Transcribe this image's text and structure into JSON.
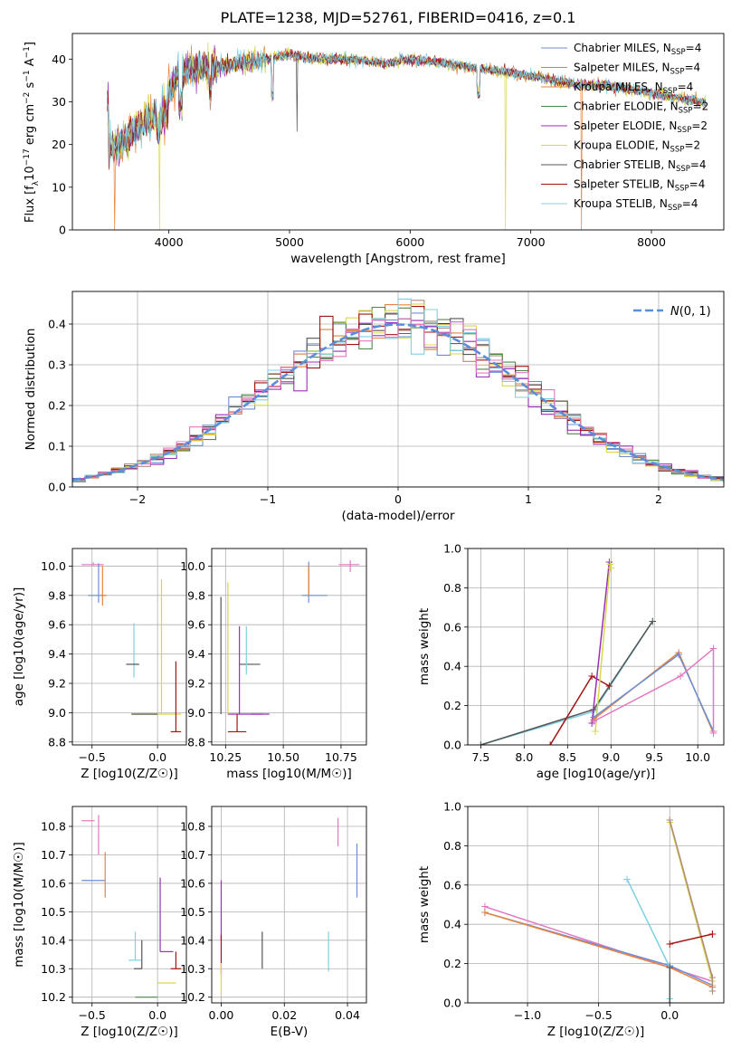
{
  "figure": {
    "title": "PLATE=1238, MJD=52761, FIBERID=0416, z=0.1"
  },
  "colors": {
    "chabrier_miles": "#6b8fd6",
    "salpeter_miles": "#b08a7e",
    "kroupa_miles": "#e8823a",
    "chabrier_elodie": "#4d8a4d",
    "salpeter_elodie": "#9b2fb5",
    "kroupa_elodie": "#d8d84a",
    "chabrier_stelib": "#555555",
    "salpeter_stelib": "#a31515",
    "kroupa_stelib": "#7fd0e0",
    "pink": "#e377c2",
    "normal_curve": "#5b8ed8",
    "grid": "#b0b0b0"
  },
  "chart_data": [
    {
      "id": "spectrum",
      "type": "line",
      "xlabel": "wavelength [Angstrom, rest frame]",
      "ylabel": "Flux [f_λ 10^-17 erg cm^-2 s^-1 A^-1]",
      "xlim": [
        3200,
        8600
      ],
      "ylim": [
        0,
        46
      ],
      "xticks": [
        4000,
        5000,
        6000,
        7000,
        8000
      ],
      "yticks": [
        0,
        10,
        20,
        30,
        40
      ],
      "grid": false,
      "legend_position": "top-right",
      "legend": [
        "Chabrier MILES, N_SSP=4",
        "Salpeter MILES, N_SSP=4",
        "Kroupa MILES, N_SSP=4",
        "Chabrier ELODIE, N_SSP=2",
        "Salpeter ELODIE, N_SSP=2",
        "Kroupa ELODIE, N_SSP=2",
        "Chabrier STELIB, N_SSP=4",
        "Salpeter STELIB, N_SSP=4",
        "Kroupa STELIB, N_SSP=4"
      ],
      "continuum": {
        "x": [
          3500,
          3600,
          3700,
          3800,
          3900,
          4000,
          4100,
          4200,
          4400,
          4600,
          4800,
          5000,
          5200,
          5500,
          5800,
          6000,
          6300,
          6500,
          6800,
          7000,
          7200,
          7400,
          7600,
          7800,
          8000,
          8200,
          8400
        ],
        "y": [
          19,
          20,
          23,
          25,
          27,
          33,
          37,
          38,
          38,
          39,
          40,
          41,
          40,
          40,
          39,
          40,
          39,
          38,
          37,
          36,
          35,
          34,
          34,
          33,
          32,
          31,
          30
        ]
      },
      "dips": [
        {
          "x": 3550,
          "y": 0
        },
        {
          "x": 3920,
          "y": 0
        },
        {
          "x": 5060,
          "y": 23
        },
        {
          "x": 6790,
          "y": 0
        },
        {
          "x": 7420,
          "y": 0
        }
      ]
    },
    {
      "id": "residual-histogram",
      "type": "line",
      "xlabel": "(data-model)/error",
      "ylabel": "Normed distribution",
      "xlim": [
        -2.5,
        2.5
      ],
      "ylim": [
        0,
        0.48
      ],
      "xticks": [
        -2,
        -1,
        0,
        1,
        2
      ],
      "yticks": [
        0.0,
        0.1,
        0.2,
        0.3,
        0.4
      ],
      "grid": true,
      "legend_position": "top-right",
      "legend": [
        "N(0, 1)"
      ],
      "bin_width": 0.1
    },
    {
      "id": "age-vs-Z",
      "type": "scatter",
      "xlabel": "Z [log10(Z/Z☉)]",
      "ylabel": "age  [log10(age/yr)]",
      "xlim": [
        -0.65,
        0.22
      ],
      "ylim": [
        8.78,
        10.12
      ],
      "xticks": [
        -0.5,
        0.0
      ],
      "yticks": [
        8.8,
        9.0,
        9.2,
        9.4,
        9.6,
        9.8,
        10.0
      ],
      "grid": true
    },
    {
      "id": "age-vs-mass",
      "type": "scatter",
      "xlabel": "mass [log10(M/M☉)]",
      "ylabel": "",
      "xlim": [
        10.19,
        10.86
      ],
      "ylim": [
        8.78,
        10.12
      ],
      "xticks": [
        10.25,
        10.5,
        10.75
      ],
      "yticks": [
        8.8,
        9.0,
        9.2,
        9.4,
        9.6,
        9.8,
        10.0
      ],
      "grid": true
    },
    {
      "id": "weight-vs-age",
      "type": "line",
      "xlabel": "age  [log10(age/yr)]",
      "ylabel": "mass weight",
      "xlim": [
        7.35,
        10.3
      ],
      "ylim": [
        0,
        1.0
      ],
      "xticks": [
        7.5,
        8.0,
        8.5,
        9.0,
        9.5,
        10.0
      ],
      "yticks": [
        0.0,
        0.2,
        0.4,
        0.6,
        0.8,
        1.0
      ],
      "grid": true
    },
    {
      "id": "mass-vs-Z",
      "type": "scatter",
      "xlabel": "Z [log10(Z/Z☉)]",
      "ylabel": "mass [log10(M/M☉)]",
      "xlim": [
        -0.65,
        0.22
      ],
      "ylim": [
        10.18,
        10.87
      ],
      "xticks": [
        -0.5,
        0.0
      ],
      "yticks": [
        10.2,
        10.3,
        10.4,
        10.5,
        10.6,
        10.7,
        10.8
      ],
      "grid": true
    },
    {
      "id": "mass-vs-EBV",
      "type": "scatter",
      "xlabel": "E(B-V)",
      "ylabel": "",
      "xlim": [
        -0.003,
        0.046
      ],
      "ylim": [
        10.18,
        10.87
      ],
      "xticks": [
        0.0,
        0.02,
        0.04
      ],
      "xtick_labels": [
        "0.00",
        "0.02",
        "0.04"
      ],
      "yticks": [
        10.2,
        10.3,
        10.4,
        10.5,
        10.6,
        10.7,
        10.8
      ],
      "grid": true
    },
    {
      "id": "weight-vs-Z",
      "type": "line",
      "xlabel": "Z [log10(Z/Z☉)]",
      "ylabel": "mass weight",
      "xlim": [
        -1.42,
        0.38
      ],
      "ylim": [
        0,
        1.0
      ],
      "xticks": [
        -1.0,
        -0.5,
        0.0
      ],
      "yticks": [
        0.0,
        0.2,
        0.4,
        0.6,
        0.8,
        1.0
      ],
      "grid": true
    }
  ]
}
